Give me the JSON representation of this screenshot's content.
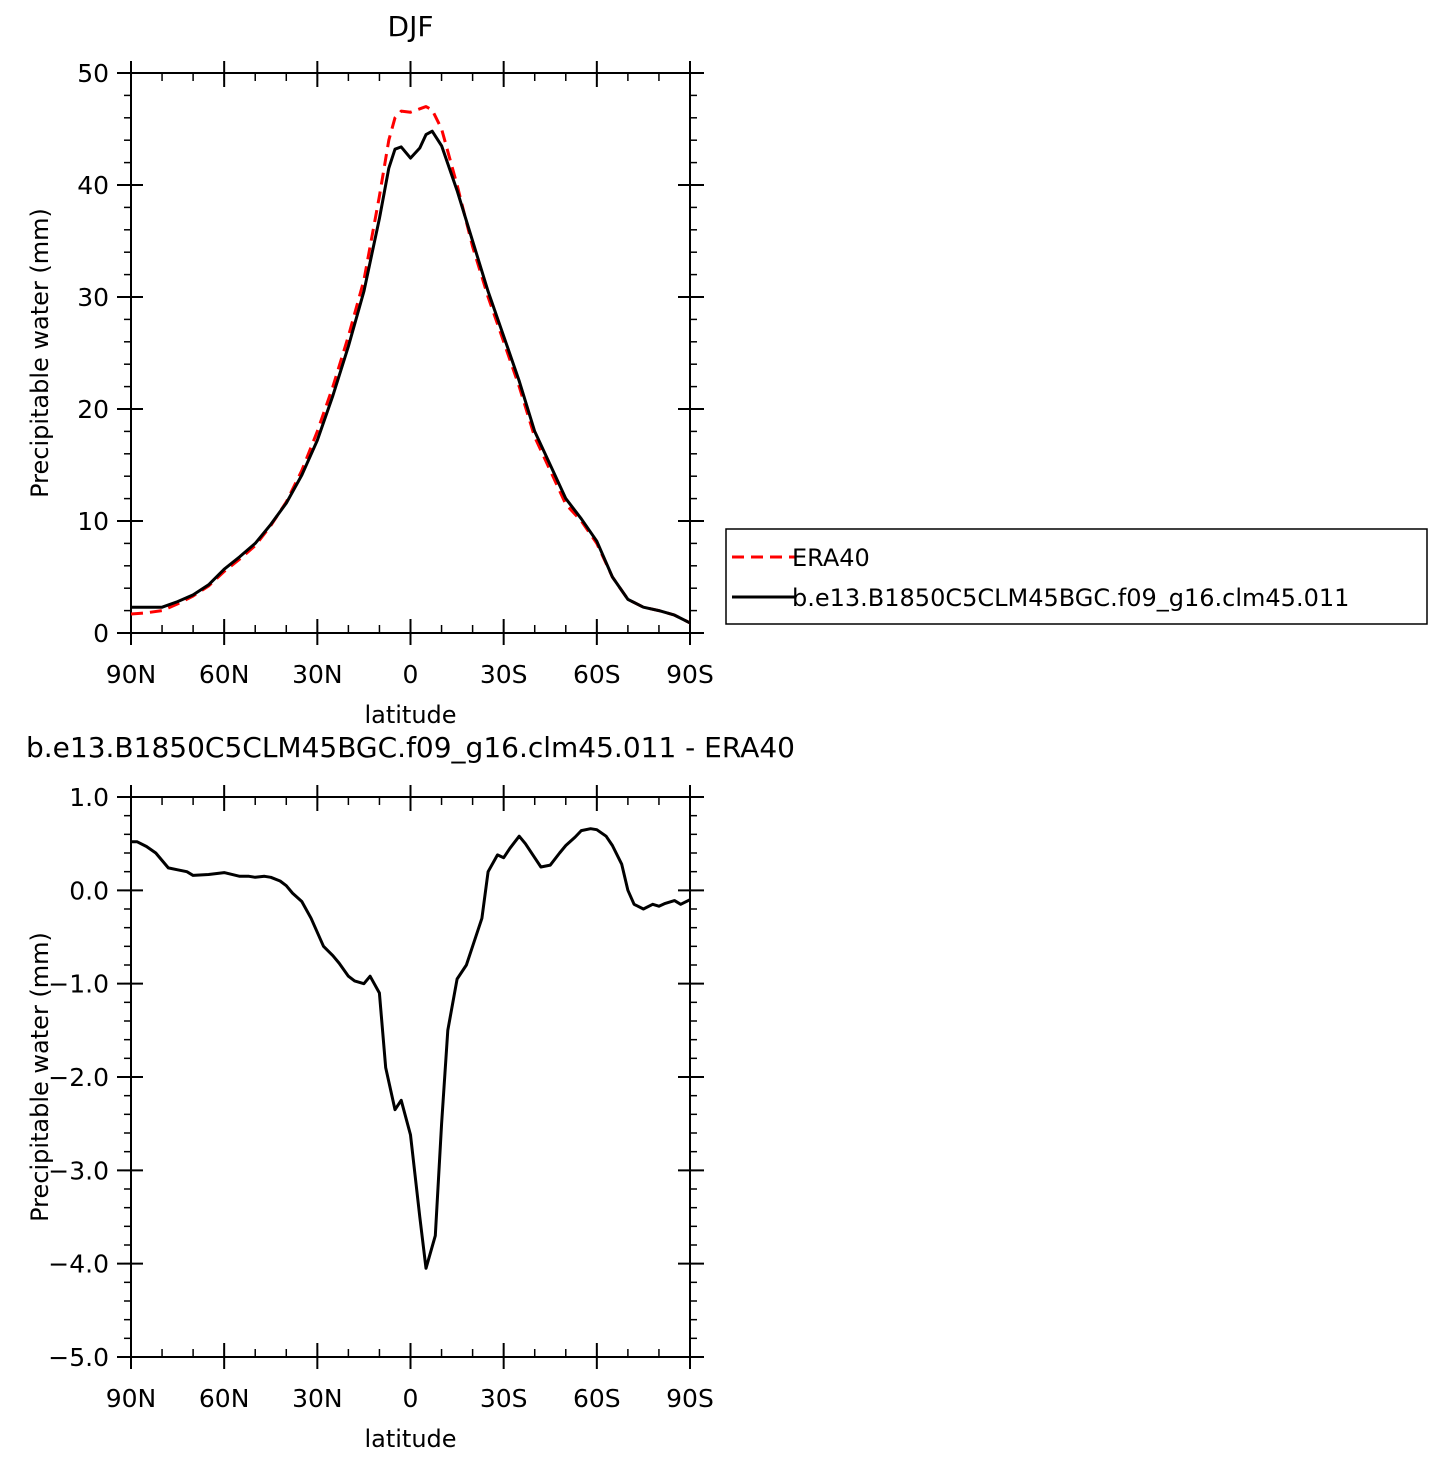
{
  "chart_data": [
    {
      "type": "line",
      "title": "DJF",
      "xlabel": "latitude",
      "ylabel": "Precipitable water (mm)",
      "xlim": [
        -90,
        90
      ],
      "ylim": [
        0,
        50
      ],
      "x_ticks": [
        -90,
        -60,
        -30,
        0,
        30,
        60,
        90
      ],
      "x_tick_labels": [
        "90N",
        "60N",
        "30N",
        "0",
        "30S",
        "60S",
        "90S"
      ],
      "y_ticks": [
        0,
        10,
        20,
        30,
        40,
        50
      ],
      "y_tick_labels": [
        "0",
        "10",
        "20",
        "30",
        "40",
        "50"
      ],
      "grid": false,
      "legend_position": "right",
      "series": [
        {
          "name": "ERA40",
          "color": "#ff0000",
          "dash": "dashed",
          "x": [
            -90,
            -85,
            -80,
            -75,
            -70,
            -65,
            -60,
            -55,
            -50,
            -45,
            -40,
            -35,
            -30,
            -25,
            -20,
            -15,
            -10,
            -7,
            -5,
            -3,
            0,
            3,
            5,
            7,
            10,
            15,
            20,
            25,
            30,
            35,
            40,
            45,
            50,
            55,
            60,
            65,
            70,
            75,
            80,
            85,
            90
          ],
          "y": [
            1.7,
            1.8,
            2.0,
            2.6,
            3.3,
            4.2,
            5.5,
            6.6,
            7.8,
            9.6,
            11.7,
            14.5,
            18.0,
            22.0,
            26.5,
            31.5,
            39.0,
            44.0,
            46.0,
            46.6,
            46.5,
            46.8,
            47.0,
            46.7,
            45.0,
            40.0,
            34.5,
            30.0,
            26.0,
            22.0,
            17.5,
            14.5,
            11.5,
            10.0,
            8.0,
            5.0,
            3.0,
            2.3,
            2.0,
            1.6,
            0.9
          ]
        },
        {
          "name": "b.e13.B1850C5CLM45BGC.f09_g16.clm45.011",
          "color": "#000000",
          "dash": "solid",
          "x": [
            -90,
            -85,
            -80,
            -75,
            -70,
            -65,
            -60,
            -55,
            -50,
            -45,
            -40,
            -35,
            -30,
            -25,
            -20,
            -15,
            -10,
            -7,
            -5,
            -3,
            0,
            3,
            5,
            7,
            10,
            15,
            20,
            25,
            30,
            35,
            40,
            45,
            50,
            55,
            60,
            65,
            70,
            75,
            80,
            85,
            90
          ],
          "y": [
            2.3,
            2.3,
            2.3,
            2.8,
            3.4,
            4.3,
            5.7,
            6.8,
            8.0,
            9.7,
            11.6,
            14.1,
            17.2,
            21.2,
            25.6,
            30.5,
            37.0,
            41.5,
            43.2,
            43.4,
            42.4,
            43.3,
            44.5,
            44.8,
            43.5,
            39.5,
            35.0,
            30.5,
            26.5,
            22.5,
            18.0,
            15.0,
            12.0,
            10.2,
            8.2,
            5.0,
            3.0,
            2.3,
            2.0,
            1.6,
            0.9
          ]
        }
      ]
    },
    {
      "type": "line",
      "title": "b.e13.B1850C5CLM45BGC.f09_g16.clm45.011 - ERA40",
      "xlabel": "latitude",
      "ylabel": "Precipitable water (mm)",
      "xlim": [
        -90,
        90
      ],
      "ylim": [
        -5,
        1
      ],
      "x_ticks": [
        -90,
        -60,
        -30,
        0,
        30,
        60,
        90
      ],
      "x_tick_labels": [
        "90N",
        "60N",
        "30N",
        "0",
        "30S",
        "60S",
        "90S"
      ],
      "y_ticks": [
        -5,
        -4,
        -3,
        -2,
        -1,
        0,
        1
      ],
      "y_tick_labels": [
        "−5.0",
        "−4.0",
        "−3.0",
        "−2.0",
        "−1.0",
        "0.0",
        "1.0"
      ],
      "grid": false,
      "series": [
        {
          "name": "",
          "color": "#000000",
          "dash": "solid",
          "x": [
            -90,
            -88,
            -85,
            -82,
            -80,
            -78,
            -75,
            -72,
            -70,
            -65,
            -60,
            -55,
            -52,
            -50,
            -47,
            -45,
            -42,
            -40,
            -38,
            -35,
            -32,
            -28,
            -25,
            -23,
            -20,
            -18,
            -15,
            -13,
            -10,
            -8,
            -5,
            -3,
            0,
            3,
            5,
            8,
            10,
            12,
            15,
            18,
            20,
            23,
            25,
            28,
            30,
            32,
            35,
            37,
            40,
            42,
            45,
            48,
            50,
            53,
            55,
            58,
            60,
            63,
            65,
            68,
            70,
            72,
            75,
            78,
            80,
            82,
            85,
            87,
            90
          ],
          "y": [
            0.52,
            0.52,
            0.47,
            0.4,
            0.32,
            0.24,
            0.22,
            0.2,
            0.16,
            0.17,
            0.19,
            0.15,
            0.15,
            0.14,
            0.15,
            0.14,
            0.1,
            0.05,
            -0.03,
            -0.12,
            -0.3,
            -0.6,
            -0.7,
            -0.78,
            -0.92,
            -0.97,
            -1.0,
            -0.92,
            -1.1,
            -1.9,
            -2.35,
            -2.25,
            -2.62,
            -3.5,
            -4.05,
            -3.7,
            -2.5,
            -1.5,
            -0.95,
            -0.8,
            -0.6,
            -0.3,
            0.2,
            0.38,
            0.35,
            0.45,
            0.58,
            0.5,
            0.35,
            0.25,
            0.27,
            0.4,
            0.48,
            0.57,
            0.64,
            0.66,
            0.65,
            0.58,
            0.48,
            0.28,
            0.0,
            -0.15,
            -0.2,
            -0.15,
            -0.17,
            -0.14,
            -0.11,
            -0.15,
            -0.1
          ]
        }
      ]
    }
  ]
}
